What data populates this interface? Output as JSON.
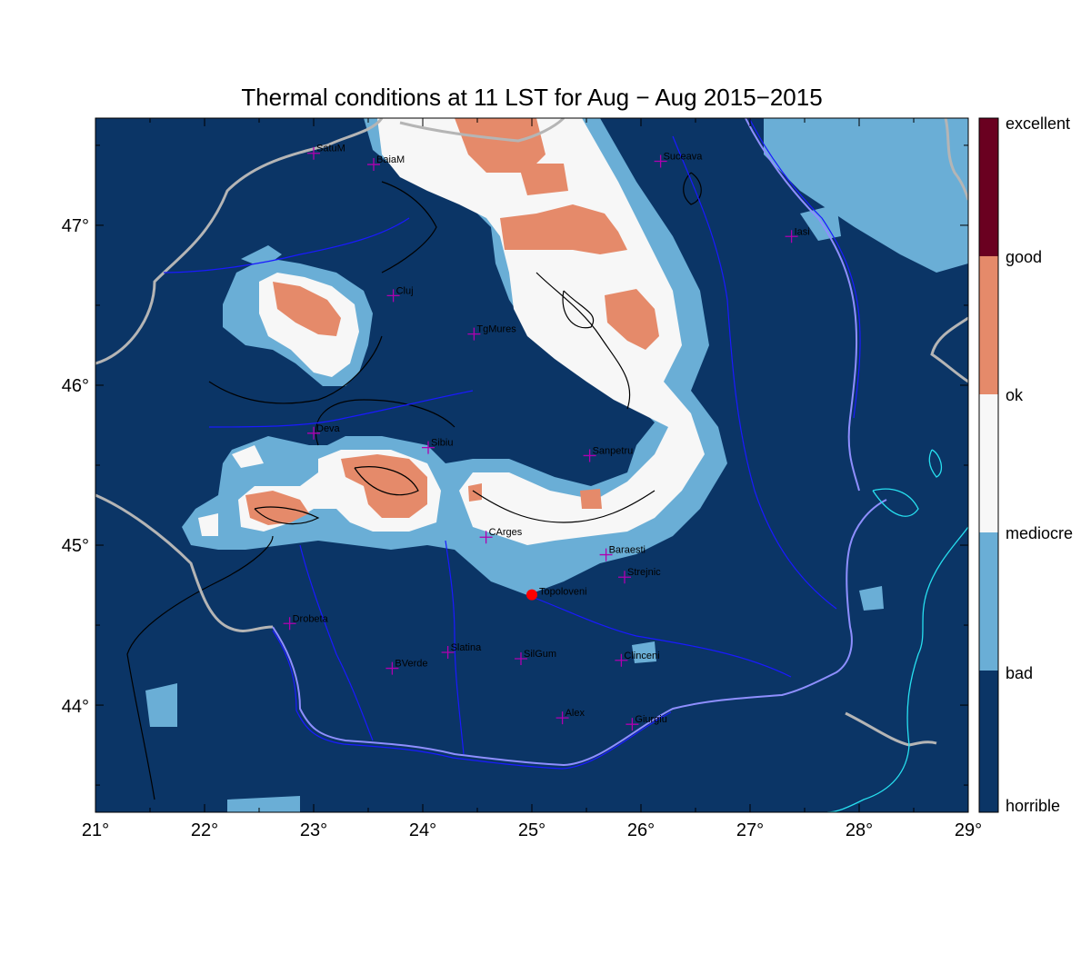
{
  "title": "Thermal conditions at 11 LST for Aug − Aug  2015−2015",
  "map": {
    "lon_range": [
      21,
      29
    ],
    "lat_range": [
      43.33,
      47.67
    ],
    "lon_ticks": [
      "21°",
      "22°",
      "23°",
      "24°",
      "25°",
      "26°",
      "27°",
      "28°",
      "29°"
    ],
    "lat_ticks": [
      "44°",
      "45°",
      "46°",
      "47°"
    ],
    "colors": {
      "horrible": "#0b3566",
      "bad": "#6aaed6",
      "mediocre": "#f7f7f7",
      "ok": "#e58a6a",
      "good": "#e58a6a",
      "excellent": "#6a0020",
      "river": "#1a1aff",
      "border": "#b5b5b5",
      "coast": "#27e0f0",
      "marker": "#b000b0",
      "highlight_point": "#ff0000"
    },
    "cities": [
      {
        "name": "SatuM",
        "lon": 23.0,
        "lat": 47.45
      },
      {
        "name": "BaiaM",
        "lon": 23.55,
        "lat": 47.38
      },
      {
        "name": "Suceava",
        "lon": 26.18,
        "lat": 47.4
      },
      {
        "name": "Iasi",
        "lon": 27.38,
        "lat": 46.93
      },
      {
        "name": "Cluj",
        "lon": 23.73,
        "lat": 46.56
      },
      {
        "name": "TgMures",
        "lon": 24.47,
        "lat": 46.32
      },
      {
        "name": "Deva",
        "lon": 23.0,
        "lat": 45.7
      },
      {
        "name": "Sibiu",
        "lon": 24.05,
        "lat": 45.61
      },
      {
        "name": "Sanpetru",
        "lon": 25.53,
        "lat": 45.56
      },
      {
        "name": "CArges",
        "lon": 24.58,
        "lat": 45.05
      },
      {
        "name": "Baraesti",
        "lon": 25.68,
        "lat": 44.94
      },
      {
        "name": "Strejnic",
        "lon": 25.85,
        "lat": 44.8
      },
      {
        "name": "Drobeta",
        "lon": 22.78,
        "lat": 44.51
      },
      {
        "name": "Slatina",
        "lon": 24.23,
        "lat": 44.33
      },
      {
        "name": "SilGum",
        "lon": 24.9,
        "lat": 44.29
      },
      {
        "name": "Clinceni",
        "lon": 25.82,
        "lat": 44.28
      },
      {
        "name": "BVerde",
        "lon": 23.72,
        "lat": 44.23
      },
      {
        "name": "Alex",
        "lon": 25.28,
        "lat": 43.92
      },
      {
        "name": "Giurgiu",
        "lon": 25.92,
        "lat": 43.88
      }
    ],
    "highlight": {
      "name": "Topoloveni",
      "lon": 25.0,
      "lat": 44.69
    }
  },
  "legend": {
    "labels": [
      "excellent",
      "good",
      "ok",
      "mediocre",
      "bad",
      "horrible"
    ]
  }
}
